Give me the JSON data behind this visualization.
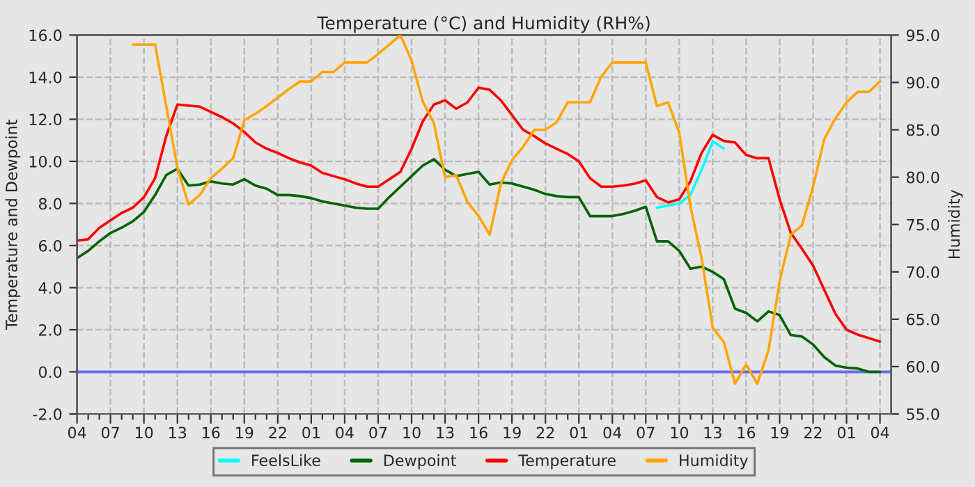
{
  "chart_data": {
    "type": "line",
    "title": "Temperature (°C) and Humidity (RH%)",
    "ylabel": "Temperature and Dewpoint",
    "y2label": "Humidity",
    "categories": [
      "04",
      null,
      null,
      "07",
      null,
      null,
      "10",
      null,
      null,
      "13",
      null,
      null,
      "16",
      null,
      null,
      "19",
      null,
      null,
      "22",
      null,
      null,
      "01",
      null,
      null,
      "04",
      null,
      null,
      "07",
      null,
      null,
      "10",
      null,
      null,
      "13",
      null,
      null,
      "16",
      null,
      null,
      "19",
      null,
      null,
      "22",
      null,
      null,
      "01",
      null,
      null,
      "04",
      null,
      null,
      "07",
      null,
      null,
      "10",
      null,
      null,
      "13",
      null,
      null,
      "16",
      null,
      null,
      "19",
      null,
      null,
      "22",
      null,
      null,
      "01",
      null,
      null,
      "04"
    ],
    "ylim": [
      -2,
      16
    ],
    "yticks": [
      {
        "value": -2,
        "label": "-2.0"
      },
      {
        "value": 0,
        "label": "0.0"
      },
      {
        "value": 2,
        "label": "2.0"
      },
      {
        "value": 4,
        "label": "4.0"
      },
      {
        "value": 6,
        "label": "6.0"
      },
      {
        "value": 8,
        "label": "8.0"
      },
      {
        "value": 10,
        "label": "10.0"
      },
      {
        "value": 12,
        "label": "12.0"
      },
      {
        "value": 14,
        "label": "14.0"
      },
      {
        "value": 16,
        "label": "16.0"
      }
    ],
    "y2lim": [
      55,
      95
    ],
    "y2ticks": [
      {
        "value": 55,
        "label": "55.0"
      },
      {
        "value": 60,
        "label": "60.0"
      },
      {
        "value": 65,
        "label": "65.0"
      },
      {
        "value": 70,
        "label": "70.0"
      },
      {
        "value": 75,
        "label": "75.0"
      },
      {
        "value": 80,
        "label": "80.0"
      },
      {
        "value": 85,
        "label": "85.0"
      },
      {
        "value": 90,
        "label": "90.0"
      },
      {
        "value": 95,
        "label": "95.0"
      }
    ],
    "grid": true,
    "legend": "bottom",
    "marker": "none",
    "line_style": "solid",
    "ref_lines": [
      {
        "axis": "y",
        "value": 0,
        "color": "#6b6bf0",
        "line_style": "solid"
      }
    ],
    "series": [
      {
        "name": "FeelsLike",
        "color": "#00ffff",
        "values": [
          null,
          null,
          null,
          null,
          null,
          null,
          null,
          null,
          null,
          null,
          null,
          null,
          null,
          null,
          null,
          null,
          null,
          null,
          null,
          null,
          null,
          null,
          null,
          null,
          null,
          null,
          null,
          null,
          null,
          null,
          null,
          null,
          null,
          null,
          null,
          null,
          null,
          null,
          null,
          null,
          null,
          null,
          null,
          null,
          null,
          null,
          null,
          null,
          null,
          null,
          null,
          null,
          7.8,
          7.9,
          8.0,
          8.4,
          9.6,
          10.95,
          10.6,
          null,
          null,
          null,
          null,
          null,
          null,
          null,
          null,
          null,
          null,
          null,
          null,
          null,
          null
        ]
      },
      {
        "name": "Dewpoint",
        "color": "#006400",
        "values": [
          5.4,
          5.75,
          6.2,
          6.6,
          6.85,
          7.15,
          7.6,
          8.4,
          9.35,
          9.65,
          8.85,
          8.9,
          9.05,
          8.95,
          8.9,
          9.15,
          8.85,
          8.7,
          8.4,
          8.4,
          8.35,
          8.25,
          8.1,
          8.0,
          7.9,
          7.8,
          7.75,
          7.75,
          8.3,
          8.8,
          9.3,
          9.8,
          10.1,
          9.6,
          9.3,
          9.4,
          9.5,
          8.9,
          9.0,
          8.95,
          8.8,
          8.65,
          8.45,
          8.35,
          8.3,
          8.3,
          7.4,
          7.4,
          7.4,
          7.5,
          7.65,
          7.84,
          6.2,
          6.2,
          5.75,
          4.9,
          5.0,
          4.75,
          4.4,
          3.0,
          2.8,
          2.4,
          2.87,
          2.7,
          1.75,
          1.68,
          1.3,
          0.7,
          0.3,
          0.2,
          0.16,
          0.0,
          0.0
        ]
      },
      {
        "name": "Temperature",
        "color": "#ff0000",
        "values": [
          6.23,
          6.3,
          6.84,
          7.2,
          7.55,
          7.8,
          8.3,
          9.2,
          11.2,
          12.7,
          12.65,
          12.6,
          12.35,
          12.1,
          11.8,
          11.4,
          10.9,
          10.6,
          10.4,
          10.15,
          9.95,
          9.8,
          9.45,
          9.3,
          9.15,
          8.95,
          8.8,
          8.8,
          9.15,
          9.5,
          10.6,
          11.9,
          12.7,
          12.9,
          12.5,
          12.8,
          13.5,
          13.4,
          12.9,
          12.2,
          11.5,
          11.2,
          10.85,
          10.6,
          10.35,
          10.0,
          9.2,
          8.8,
          8.8,
          8.85,
          8.94,
          9.1,
          8.3,
          8.05,
          8.2,
          9.05,
          10.4,
          11.26,
          10.97,
          10.9,
          10.3,
          10.15,
          10.15,
          8.2,
          6.6,
          5.85,
          5.05,
          3.9,
          2.76,
          2.0,
          1.77,
          1.6,
          1.44
        ]
      },
      {
        "name": "Humidity",
        "color": "#ffa500",
        "axis": "y2",
        "values": [
          null,
          null,
          null,
          null,
          null,
          94,
          94,
          94,
          87.5,
          81.0,
          77.1,
          78.1,
          79.9,
          80.9,
          82.0,
          86.0,
          86.7,
          87.5,
          88.4,
          89.3,
          90.1,
          90.1,
          91.1,
          91.1,
          92.1,
          92.1,
          92.1,
          93,
          94,
          95,
          92.3,
          88.0,
          85.7,
          80.0,
          80.2,
          77.4,
          75.9,
          73.9,
          79.3,
          81.8,
          83.2,
          85,
          85,
          85.8,
          87.9,
          87.9,
          87.9,
          90.6,
          92.1,
          92.1,
          92.1,
          92.1,
          87.5,
          87.9,
          84.7,
          76.9,
          71.5,
          64.1,
          62.6,
          58.2,
          60.2,
          58.2,
          61.7,
          69.0,
          73.9,
          74.9,
          79.0,
          84.0,
          86.2,
          87.9,
          89.0,
          89.0,
          90.1
        ]
      }
    ]
  }
}
